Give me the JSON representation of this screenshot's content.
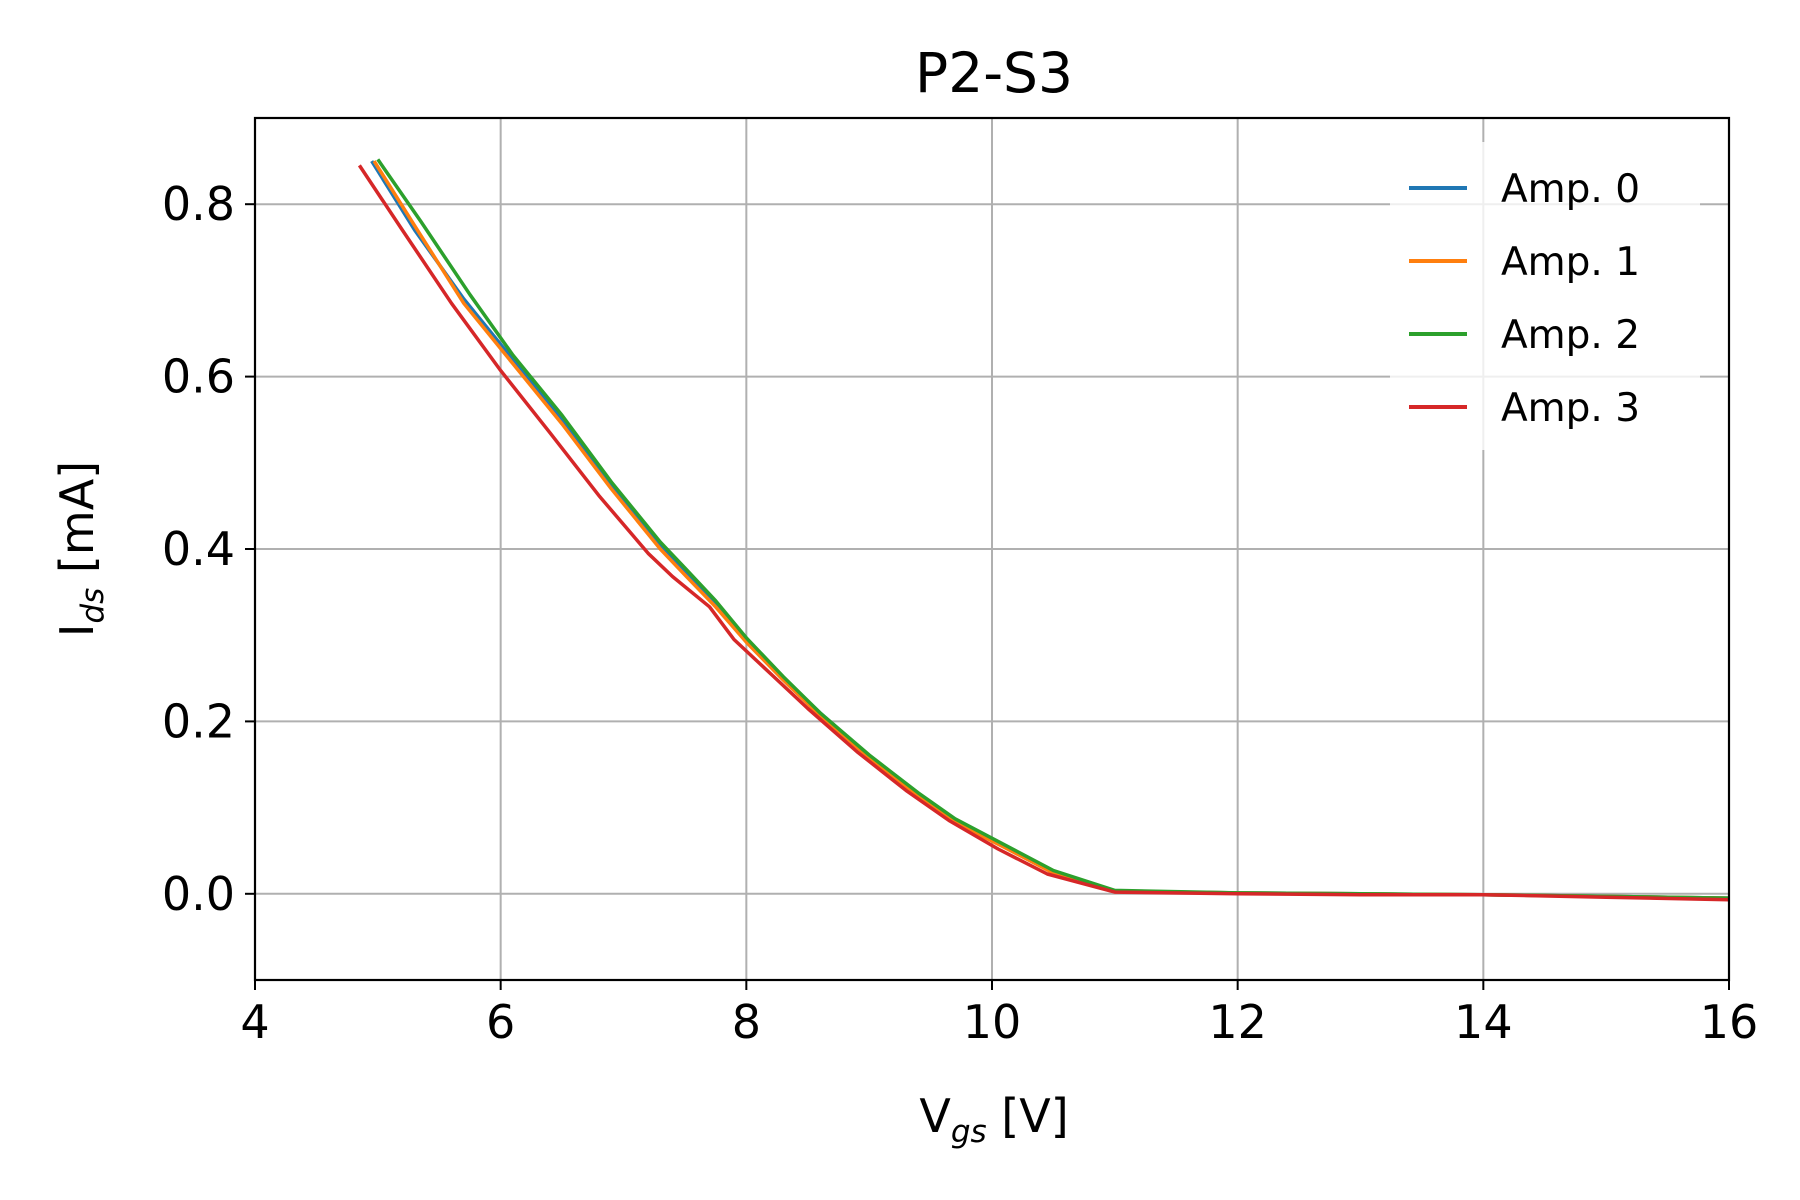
{
  "chart_data": {
    "type": "line",
    "title": "P2-S3",
    "xlabel": {
      "main": "V",
      "sub": "gs",
      "unit": " [V]"
    },
    "ylabel": {
      "main": "I",
      "sub": "ds",
      "unit": " [mA]"
    },
    "xlim": [
      4,
      16
    ],
    "ylim": [
      -0.1,
      0.9
    ],
    "xticks": [
      4,
      6,
      8,
      10,
      12,
      14,
      16
    ],
    "xtick_labels": [
      "4",
      "6",
      "8",
      "10",
      "12",
      "14",
      "16"
    ],
    "yticks": [
      0.0,
      0.2,
      0.4,
      0.6,
      0.8
    ],
    "ytick_labels": [
      "0.0",
      "0.2",
      "0.4",
      "0.6",
      "0.8"
    ],
    "grid": true,
    "legend_position": "top-right",
    "series": [
      {
        "name": "Amp. 0",
        "color": "#1f77b4",
        "x": [
          4.95,
          5.3,
          5.7,
          6.1,
          6.5,
          6.9,
          7.3,
          7.5,
          7.75,
          8.0,
          8.3,
          8.6,
          9.0,
          9.4,
          9.7,
          10.1,
          10.5,
          11.0,
          12.0,
          13.0,
          14.0,
          15.0,
          16.0
        ],
        "y": [
          0.85,
          0.77,
          0.69,
          0.62,
          0.55,
          0.475,
          0.405,
          0.375,
          0.335,
          0.295,
          0.25,
          0.21,
          0.16,
          0.115,
          0.085,
          0.055,
          0.025,
          0.003,
          0.001,
          0.0,
          -0.001,
          -0.003,
          -0.005
        ]
      },
      {
        "name": "Amp. 1",
        "color": "#ff7f0e",
        "x": [
          4.97,
          5.3,
          5.7,
          6.1,
          6.5,
          6.9,
          7.3,
          7.5,
          7.75,
          8.0,
          8.3,
          8.6,
          9.0,
          9.4,
          9.7,
          10.1,
          10.5,
          11.0,
          12.0,
          13.0,
          14.0,
          15.0,
          16.0
        ],
        "y": [
          0.85,
          0.775,
          0.685,
          0.615,
          0.545,
          0.47,
          0.4,
          0.37,
          0.333,
          0.292,
          0.248,
          0.207,
          0.158,
          0.113,
          0.083,
          0.054,
          0.024,
          0.003,
          0.001,
          0.0,
          -0.001,
          -0.003,
          -0.005
        ]
      },
      {
        "name": "Amp. 2",
        "color": "#2ca02c",
        "x": [
          5.0,
          5.35,
          5.75,
          6.1,
          6.5,
          6.9,
          7.3,
          7.5,
          7.75,
          8.0,
          8.3,
          8.6,
          9.0,
          9.4,
          9.7,
          10.1,
          10.5,
          11.0,
          12.0,
          13.0,
          14.0,
          15.0,
          16.0
        ],
        "y": [
          0.852,
          0.78,
          0.695,
          0.625,
          0.555,
          0.478,
          0.408,
          0.378,
          0.34,
          0.297,
          0.252,
          0.21,
          0.161,
          0.117,
          0.087,
          0.057,
          0.027,
          0.004,
          0.001,
          0.0,
          -0.001,
          -0.003,
          -0.005
        ]
      },
      {
        "name": "Amp. 3",
        "color": "#d62728",
        "x": [
          4.85,
          5.2,
          5.6,
          6.0,
          6.4,
          6.8,
          7.2,
          7.4,
          7.7,
          7.9,
          8.2,
          8.5,
          8.9,
          9.3,
          9.65,
          10.05,
          10.45,
          11.0,
          12.0,
          13.0,
          14.0,
          15.0,
          16.0
        ],
        "y": [
          0.845,
          0.77,
          0.685,
          0.607,
          0.535,
          0.462,
          0.395,
          0.368,
          0.333,
          0.295,
          0.255,
          0.215,
          0.165,
          0.12,
          0.085,
          0.052,
          0.023,
          0.002,
          0.0,
          -0.001,
          -0.001,
          -0.004,
          -0.007
        ]
      }
    ]
  }
}
